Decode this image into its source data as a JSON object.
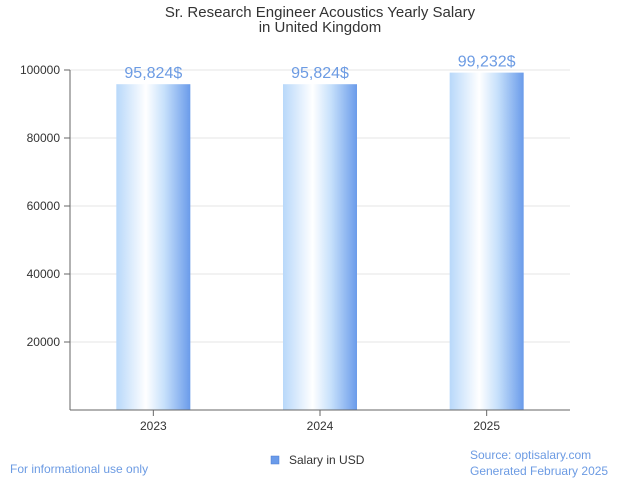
{
  "chart_data": {
    "type": "bar",
    "title_lines": [
      "Sr. Research Engineer Acoustics Yearly Salary",
      "in United Kingdom"
    ],
    "categories": [
      "2023",
      "2024",
      "2025"
    ],
    "series": [
      {
        "name": "Salary in USD",
        "values": [
          95824,
          95824,
          99232
        ]
      }
    ],
    "data_labels": [
      "95,824$",
      "95,824$",
      "99,232$"
    ],
    "y_ticks": [
      20000,
      40000,
      60000,
      80000,
      100000
    ],
    "ylim": [
      0,
      100000
    ],
    "grid": true,
    "legend_position": "bottom-center"
  },
  "footer": {
    "disclaimer": "For informational use only",
    "source": "Source: optisalary.com",
    "generated": "Generated February 2025"
  },
  "colors": {
    "bar_light": "#ffffff",
    "bar_mid": "#c6e0fb",
    "bar_dark": "#6a9bea",
    "accent": "#6c9be3",
    "grid": "#e6e6e6",
    "axis": "#666666"
  }
}
